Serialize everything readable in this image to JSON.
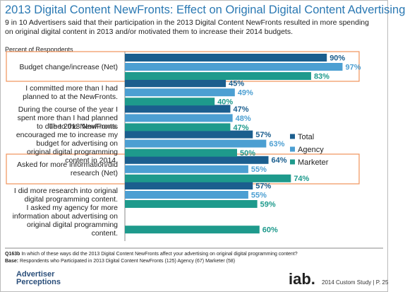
{
  "chart_data": {
    "type": "hbar",
    "title": "2013 Digital Content NewFronts: Effect on Original Digital Content Advertising",
    "subtitle": "9 in 10  Advertisers said that their participation in the 2013 Digital Content NewFronts resulted in more spending on original digital content in 2013 and/or motivated them to increase their 2014 budgets.",
    "axis_label": "Percent of Respondents",
    "categories": [
      "Budget change/increase (Net)",
      "I committed more than I had planned to at the NewFronts.",
      "During the course of the year I spent more than I had planned to due to the NewFronts.",
      "The 2013 NewFronts encouraged me to increase my budget for advertising on original digital programming content in 2014.",
      "Asked for more information/did research (Net)",
      "I did more research into original digital programming content.",
      "I asked my agency for more information about advertising on original digital programming content."
    ],
    "series": [
      {
        "name": "Total",
        "color": "#1b5e8e",
        "values": [
          90,
          45,
          47,
          57,
          64,
          57,
          null
        ],
        "value_labels": [
          "90%",
          "45%",
          "47%",
          "57%",
          "64%",
          "57%",
          null
        ]
      },
      {
        "name": "Agency",
        "color": "#4c9fd2",
        "values": [
          97,
          49,
          48,
          63,
          55,
          55,
          null
        ],
        "value_labels": [
          "97%",
          "49%",
          "48%",
          "63%",
          "55%",
          "55%",
          null
        ]
      },
      {
        "name": "Marketer",
        "color": "#1e9a8c",
        "values": [
          83,
          40,
          47,
          50,
          74,
          59,
          60
        ],
        "value_labels": [
          "83%",
          "40%",
          "47%",
          "50%",
          "74%",
          "59%",
          "60%"
        ]
      }
    ],
    "xlim": [
      0,
      100
    ]
  },
  "footer": {
    "question_label": "Q163b",
    "question": "In which of these ways did the 2013 Digital Content NewFronts affect your advertising on original digital programming content?",
    "base_label": "Base:",
    "base": "Respondents who Participated in 2013 Digital Content NewFronts (125)  Agency (67) Marketer (58)",
    "logo_left_1": "Advertiser",
    "logo_left_2": "Perceptions",
    "logo_right": "iab.",
    "page": "2014 Custom Study | P. 25"
  }
}
